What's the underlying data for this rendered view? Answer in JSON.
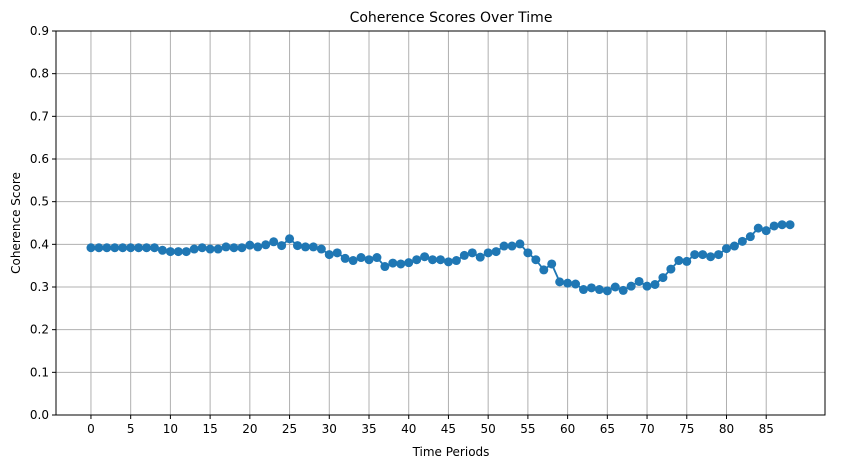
{
  "chart_data": {
    "type": "line",
    "title": "Coherence Scores Over Time",
    "xlabel": "Time Periods",
    "ylabel": "Coherence Score",
    "xlim": [
      -4.4,
      92.4
    ],
    "ylim": [
      0,
      0.9
    ],
    "x_ticks": [
      "0",
      "5",
      "10",
      "15",
      "20",
      "25",
      "30",
      "35",
      "40",
      "45",
      "50",
      "55",
      "60",
      "65",
      "70",
      "75",
      "80",
      "85"
    ],
    "y_ticks": [
      "0.0",
      "0.1",
      "0.2",
      "0.3",
      "0.4",
      "0.5",
      "0.6",
      "0.7",
      "0.8",
      "0.9"
    ],
    "grid": true,
    "marker": "circle",
    "color": "#1f77b4",
    "series": [
      {
        "x": [
          0,
          1,
          2,
          3,
          4,
          5,
          6,
          7,
          8,
          9,
          10,
          11,
          12,
          13,
          14,
          15,
          16,
          17,
          18,
          19,
          20,
          21,
          22,
          23,
          24,
          25,
          26,
          27,
          28,
          29,
          30,
          31,
          32,
          33,
          34,
          35,
          36,
          37,
          38,
          39,
          40,
          41,
          42,
          43,
          44,
          45,
          46,
          47,
          48,
          49,
          50,
          51,
          52,
          53,
          54,
          55,
          56,
          57,
          58,
          59,
          60,
          61,
          62,
          63,
          64,
          65,
          66,
          67,
          68,
          69,
          70,
          71,
          72,
          73,
          74,
          75,
          76,
          77,
          78,
          79,
          80,
          81,
          82,
          83,
          84,
          85,
          86,
          87,
          88
        ],
        "values": [
          0.392,
          0.392,
          0.392,
          0.392,
          0.392,
          0.392,
          0.392,
          0.392,
          0.392,
          0.386,
          0.383,
          0.383,
          0.383,
          0.389,
          0.392,
          0.389,
          0.389,
          0.394,
          0.392,
          0.392,
          0.398,
          0.394,
          0.399,
          0.406,
          0.397,
          0.413,
          0.397,
          0.394,
          0.394,
          0.389,
          0.376,
          0.38,
          0.367,
          0.362,
          0.369,
          0.364,
          0.369,
          0.348,
          0.356,
          0.354,
          0.357,
          0.364,
          0.371,
          0.364,
          0.364,
          0.359,
          0.362,
          0.374,
          0.38,
          0.37,
          0.38,
          0.383,
          0.396,
          0.396,
          0.401,
          0.38,
          0.364,
          0.34,
          0.354,
          0.312,
          0.309,
          0.307,
          0.294,
          0.298,
          0.294,
          0.291,
          0.3,
          0.292,
          0.302,
          0.313,
          0.302,
          0.306,
          0.322,
          0.342,
          0.362,
          0.36,
          0.376,
          0.376,
          0.371,
          0.376,
          0.39,
          0.396,
          0.407,
          0.418,
          0.438,
          0.432,
          0.443,
          0.446,
          0.446
        ]
      }
    ]
  }
}
